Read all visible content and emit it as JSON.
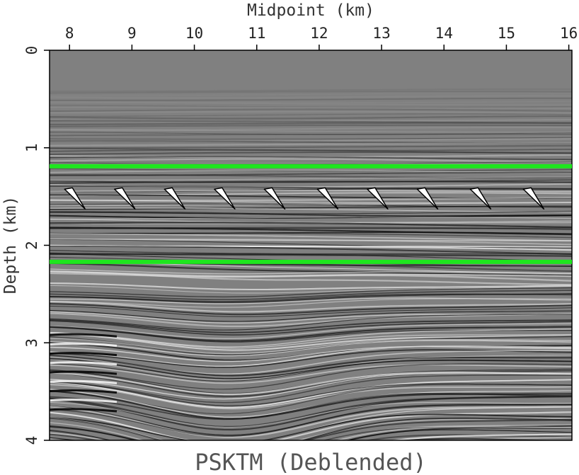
{
  "chart_data": {
    "type": "heatmap",
    "caption": "PSKTM (Deblended)",
    "xlabel": "Midpoint (km)",
    "ylabel": "Depth (km)",
    "x_ticks": [
      "8",
      "9",
      "10",
      "11",
      "12",
      "13",
      "14",
      "15",
      "16"
    ],
    "y_ticks": [
      "0",
      "1",
      "2",
      "3",
      "4"
    ],
    "xlim": [
      7.68,
      16.05
    ],
    "ylim": [
      0,
      4
    ],
    "y_inverted": true,
    "x_axis_position": "top",
    "horizon_lines": [
      {
        "depth_km": 1.19,
        "color": "#1ee61e"
      },
      {
        "depth_km": 2.17,
        "color": "#1ee61e"
      }
    ],
    "arrow_markers": [
      {
        "midpoint_km": 8.25,
        "depth_km": 1.57
      },
      {
        "midpoint_km": 9.05,
        "depth_km": 1.57
      },
      {
        "midpoint_km": 9.85,
        "depth_km": 1.57
      },
      {
        "midpoint_km": 10.65,
        "depth_km": 1.57
      },
      {
        "midpoint_km": 11.45,
        "depth_km": 1.57
      },
      {
        "midpoint_km": 12.3,
        "depth_km": 1.57
      },
      {
        "midpoint_km": 13.1,
        "depth_km": 1.57
      },
      {
        "midpoint_km": 13.9,
        "depth_km": 1.57
      },
      {
        "midpoint_km": 14.75,
        "depth_km": 1.57
      },
      {
        "midpoint_km": 15.6,
        "depth_km": 1.57
      }
    ],
    "colormap": "grayscale",
    "background_color": "#808080",
    "grid": false
  }
}
